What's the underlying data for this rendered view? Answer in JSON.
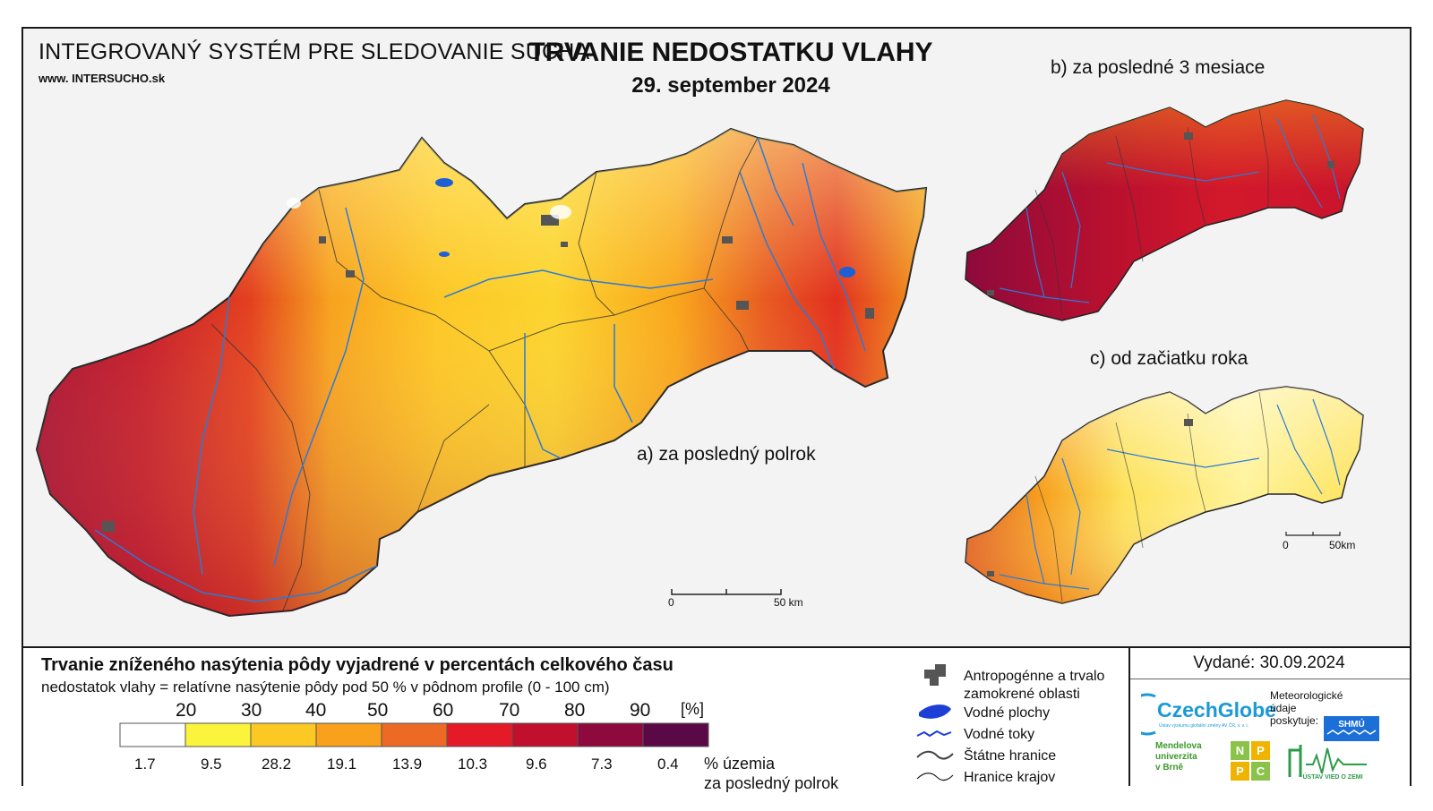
{
  "header": {
    "system_title": "INTEGROVANÝ SYSTÉM PRE SLEDOVANIE SUCHA",
    "url": "www. INTERSUCHO.sk",
    "title": "TRVANIE NEDOSTATKU VLAHY",
    "date": "29. september 2024"
  },
  "maps": {
    "a_label": "a) za posledný polrok",
    "b_label": "b) za posledné 3 mesiace",
    "c_label": "c) od začiatku roka",
    "scale_main": {
      "zero": "0",
      "end": "50 km"
    },
    "scale_small": {
      "zero": "0",
      "end": "50km"
    }
  },
  "legend": {
    "title": "Trvanie zníženého nasýtenia pôdy vyjadrené v percentách celkového času",
    "subtitle": "nedostatok vlahy = relatívne nasýtenie pôdy pod 50 % v pôdnom profile (0 - 100 cm)",
    "unit": "[%]",
    "thresholds": [
      "20",
      "30",
      "40",
      "50",
      "60",
      "70",
      "80",
      "90"
    ],
    "classes": [
      {
        "color": "#ffffff",
        "pct": "1.7"
      },
      {
        "color": "#fcf33c",
        "pct": "9.5"
      },
      {
        "color": "#fcc924",
        "pct": "28.2"
      },
      {
        "color": "#f9a01c",
        "pct": "19.1"
      },
      {
        "color": "#ec6a23",
        "pct": "13.9"
      },
      {
        "color": "#e41a28",
        "pct": "10.3"
      },
      {
        "color": "#c0102e",
        "pct": "9.6"
      },
      {
        "color": "#8e0a3c",
        "pct": "7.3"
      },
      {
        "color": "#5a0846",
        "pct": "0.4"
      }
    ],
    "pct_note_line1": "% územia",
    "pct_note_line2": "za posledný polrok",
    "symbols": {
      "urban": "Antropogénne a trvalo zamokrené oblasti",
      "urban_line1": "Antropogénne a trvalo",
      "urban_line2": "zamokrené oblasti",
      "water_bodies": "Vodné plochy",
      "rivers": "Vodné toky",
      "state_border": "Štátne hranice",
      "region_border": "Hranice krajov"
    }
  },
  "issue": {
    "issued": "Vydané: 30.09.2024",
    "czechglobe": "CzechGlobe",
    "czechglobe_sub": "Ústav výzkumu globální změny AV ČR, v. v. i.",
    "met_text": "Meteorologické údaje poskytuje:",
    "met_line1": "Meteorologické",
    "met_line2": "údaje",
    "met_line3": "poskytuje:",
    "shmu": "SHMÚ",
    "mendel_line1": "Mendelova",
    "mendel_line2": "univerzita",
    "mendel_line3": "v Brně",
    "nppc": [
      "N",
      "P",
      "P",
      "C"
    ],
    "uvz": "ÚSTAV VIED O ZEMI"
  },
  "colors": {
    "river": "#2a7bd6",
    "border": "#2b2b2b",
    "urban": "#444444",
    "frame": "#1a1a1a"
  }
}
